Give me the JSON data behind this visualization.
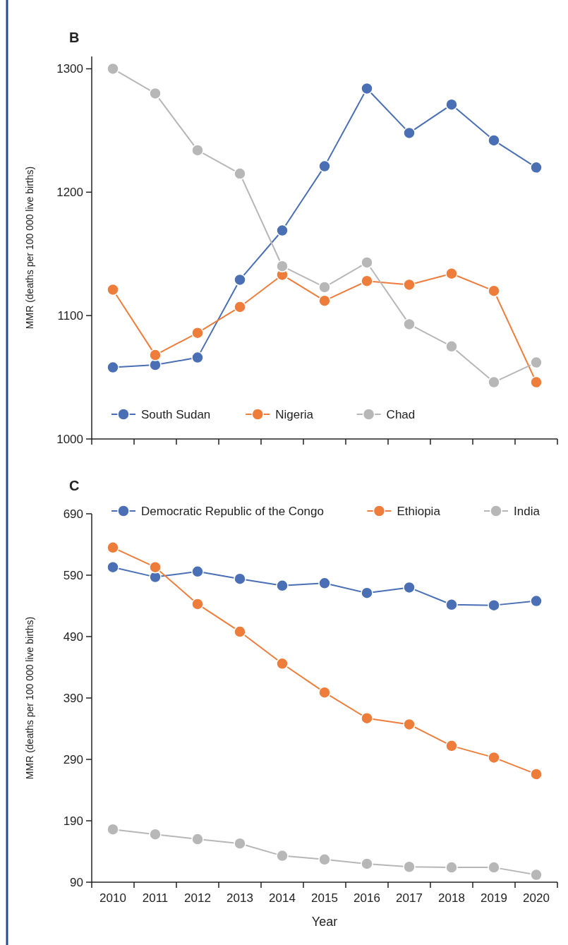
{
  "chart_data": [
    {
      "type": "line",
      "title": "B",
      "ylabel": "MMR (deaths per 100 000 live births)",
      "categories": [
        null,
        null,
        null,
        null,
        null,
        null,
        null,
        null,
        null,
        null,
        null
      ],
      "ylim": [
        1000,
        1310
      ],
      "yticks": [
        1000,
        1100,
        1200,
        1300
      ],
      "tick_labels": "y",
      "legend": "bottom left",
      "marker": "circle",
      "grid": false,
      "series": [
        {
          "name": "South Sudan",
          "color": "#4a6fb5",
          "values": [
            1058,
            1060,
            1066,
            1129,
            1169,
            1221,
            1284,
            1248,
            1271,
            1242,
            1220
          ]
        },
        {
          "name": "Nigeria",
          "color": "#ee7d3b",
          "values": [
            1121,
            1068,
            1086,
            1107,
            1133,
            1112,
            1128,
            1125,
            1134,
            1120,
            1046
          ]
        },
        {
          "name": "Chad",
          "color": "#b7b7b7",
          "values": [
            1300,
            1280,
            1234,
            1215,
            1140,
            1123,
            1143,
            1093,
            1075,
            1046,
            1062
          ]
        }
      ]
    },
    {
      "type": "line",
      "title": "C",
      "ylabel": "MMR (deaths per 100 000 live births)",
      "xlabel": "Year",
      "categories": [
        "2010",
        "2011",
        "2012",
        "2013",
        "2014",
        "2015",
        "2016",
        "2017",
        "2018",
        "2019",
        "2020"
      ],
      "ylim": [
        90,
        690
      ],
      "yticks": [
        90,
        190,
        290,
        390,
        490,
        590,
        690
      ],
      "legend": "top left",
      "marker": "circle",
      "grid": false,
      "series": [
        {
          "name": "Democratic Republic of the Congo",
          "color": "#4a6fb5",
          "values": [
            603,
            587,
            596,
            584,
            573,
            577,
            561,
            570,
            542,
            541,
            548
          ]
        },
        {
          "name": "Ethiopia",
          "color": "#ee7d3b",
          "values": [
            635,
            603,
            543,
            498,
            446,
            399,
            357,
            347,
            312,
            293,
            266
          ]
        },
        {
          "name": "India",
          "color": "#b7b7b7",
          "values": [
            176,
            168,
            160,
            153,
            133,
            127,
            120,
            115,
            114,
            114,
            102
          ]
        }
      ]
    }
  ]
}
